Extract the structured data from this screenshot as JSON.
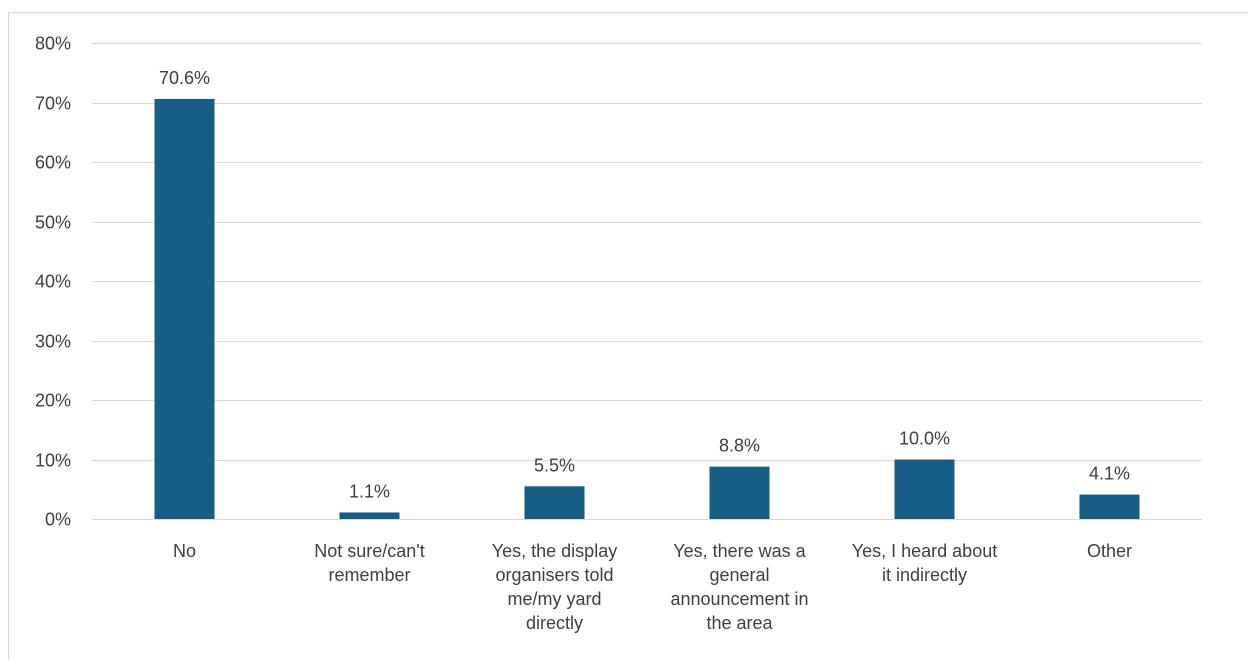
{
  "chart_data": {
    "type": "bar",
    "categories": [
      [
        "No"
      ],
      [
        "Not sure/can't",
        "remember"
      ],
      [
        "Yes, the display",
        "organisers told",
        "me/my yard",
        "directly"
      ],
      [
        "Yes, there was a",
        "general",
        "announcement in",
        "the area"
      ],
      [
        "Yes, I heard about",
        "it indirectly"
      ],
      [
        "Other"
      ]
    ],
    "values": [
      70.6,
      1.1,
      5.5,
      8.8,
      10.0,
      4.1
    ],
    "data_labels": [
      "70.6%",
      "1.1%",
      "5.5%",
      "8.8%",
      "10.0%",
      "4.1%"
    ],
    "ylim": [
      0,
      80
    ],
    "y_ticks": [
      0,
      10,
      20,
      30,
      40,
      50,
      60,
      70,
      80
    ],
    "y_tick_labels": [
      "0%",
      "10%",
      "20%",
      "30%",
      "40%",
      "50%",
      "60%",
      "70%",
      "80%"
    ],
    "title": "",
    "xlabel": "",
    "ylabel": "",
    "grid": true,
    "legend": "none",
    "bar_color": "#165e83"
  }
}
